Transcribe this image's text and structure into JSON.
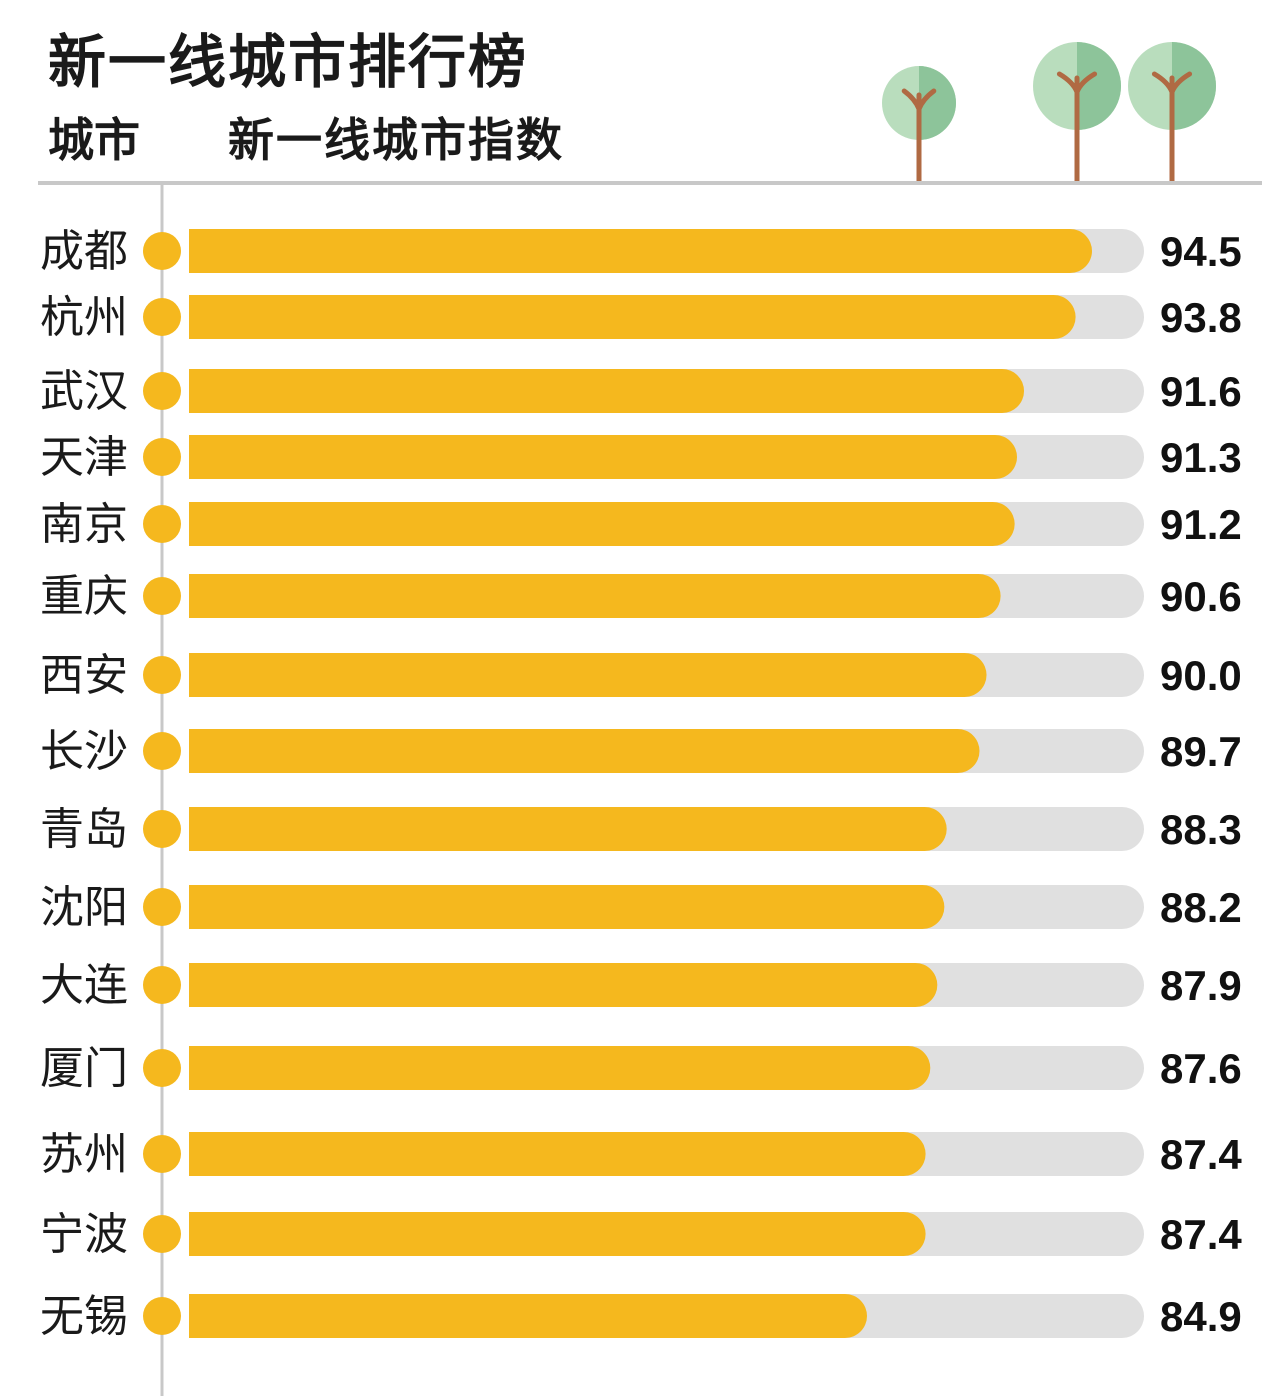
{
  "header": {
    "title": "新一线城市排行榜",
    "col_city": "城市",
    "col_index": "新一线城市指数"
  },
  "colors": {
    "bar": "#f5b81e",
    "track": "#e0e0e0",
    "axis": "#c8c8c8",
    "tree_light": "#b9ddbd",
    "tree_dark": "#8dc49a",
    "trunk": "#b06a43"
  },
  "icons": [
    "tree-icon",
    "tree-icon",
    "tree-icon"
  ],
  "chart_data": {
    "type": "bar",
    "orientation": "horizontal",
    "categories": [
      "成都",
      "杭州",
      "武汉",
      "天津",
      "南京",
      "重庆",
      "西安",
      "长沙",
      "青岛",
      "沈阳",
      "大连",
      "厦门",
      "苏州",
      "宁波",
      "无锡"
    ],
    "values": [
      94.5,
      93.8,
      91.6,
      91.3,
      91.2,
      90.6,
      90.0,
      89.7,
      88.3,
      88.2,
      87.9,
      87.6,
      87.4,
      87.4,
      84.9
    ],
    "value_labels": [
      "94.5",
      "93.8",
      "91.6",
      "91.3",
      "91.2",
      "90.6",
      "90.0",
      "89.7",
      "88.3",
      "88.2",
      "87.9",
      "87.6",
      "87.4",
      "87.4",
      "84.9"
    ],
    "xlabel": "",
    "ylabel": ""
  }
}
